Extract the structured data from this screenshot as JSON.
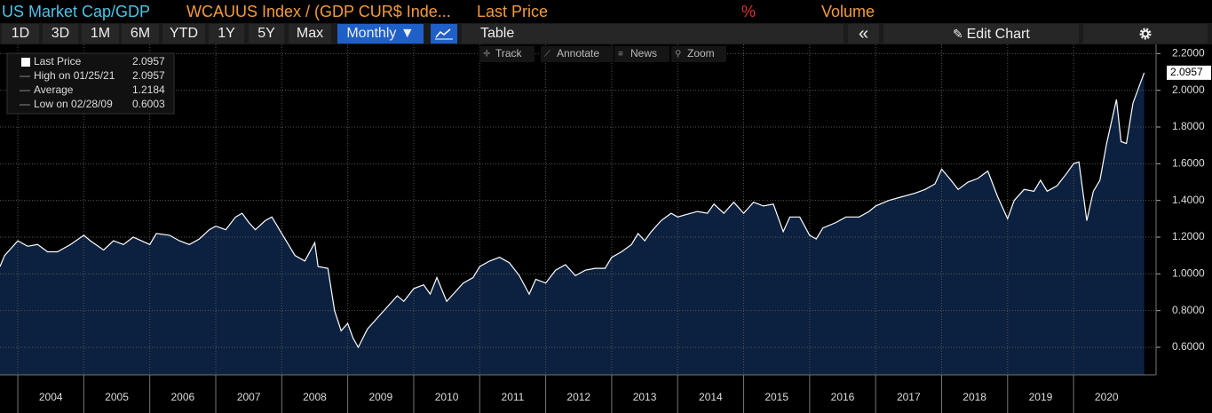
{
  "header": {
    "items": [
      {
        "text": "US Market Cap/GDP",
        "color": "#4fc3e8"
      },
      {
        "text": "WCAUUS Index / (GDP CUR$ Inde...",
        "color": "#f39c3c"
      },
      {
        "text": "Last Price",
        "color": "#f39c3c"
      },
      {
        "text": "%",
        "color": "#e0302a"
      },
      {
        "text": "Volume",
        "color": "#f39c3c"
      }
    ]
  },
  "toolbar": {
    "ranges": [
      "1D",
      "3D",
      "1M",
      "6M",
      "YTD",
      "1Y",
      "5Y",
      "Max"
    ],
    "period": "Monthly ▼",
    "table": "Table",
    "collapse": "«",
    "edit": "Edit Chart"
  },
  "chart_tools": [
    "Track",
    "Annotate",
    "News",
    "Zoom"
  ],
  "legend_stats": [
    {
      "label": "Last Price",
      "value": 2.0957
    },
    {
      "label": "High on 01/25/21",
      "value": 2.0957
    },
    {
      "label": "Average",
      "value": 1.2184
    },
    {
      "label": "Low on 02/28/09",
      "value": 0.6003
    }
  ],
  "chart_data": {
    "type": "area",
    "color": "#ffffff",
    "fill": "#0c2140",
    "grid": true,
    "x": [
      2003.73,
      2003.8,
      2004.0,
      2004.15,
      2004.3,
      2004.45,
      2004.6,
      2004.8,
      2005.0,
      2005.1,
      2005.3,
      2005.45,
      2005.6,
      2005.75,
      2006.0,
      2006.1,
      2006.3,
      2006.45,
      2006.6,
      2006.75,
      2006.9,
      2007.0,
      2007.15,
      2007.3,
      2007.4,
      2007.5,
      2007.6,
      2007.75,
      2007.85,
      2008.0,
      2008.1,
      2008.2,
      2008.35,
      2008.5,
      2008.55,
      2008.7,
      2008.8,
      2008.9,
      2009.0,
      2009.08,
      2009.16,
      2009.3,
      2009.45,
      2009.6,
      2009.75,
      2009.85,
      2010.0,
      2010.15,
      2010.25,
      2010.35,
      2010.5,
      2010.6,
      2010.75,
      2010.9,
      2011.0,
      2011.15,
      2011.3,
      2011.45,
      2011.6,
      2011.75,
      2011.85,
      2012.0,
      2012.15,
      2012.3,
      2012.45,
      2012.6,
      2012.75,
      2012.9,
      2013.0,
      2013.15,
      2013.3,
      2013.4,
      2013.5,
      2013.6,
      2013.75,
      2013.9,
      2014.0,
      2014.1,
      2014.3,
      2014.45,
      2014.55,
      2014.7,
      2014.85,
      2015.0,
      2015.15,
      2015.3,
      2015.45,
      2015.6,
      2015.7,
      2015.85,
      2016.0,
      2016.1,
      2016.2,
      2016.4,
      2016.55,
      2016.75,
      2016.9,
      2017.0,
      2017.2,
      2017.4,
      2017.6,
      2017.75,
      2017.9,
      2018.0,
      2018.12,
      2018.25,
      2018.4,
      2018.55,
      2018.7,
      2018.85,
      2019.0,
      2019.1,
      2019.25,
      2019.4,
      2019.5,
      2019.6,
      2019.75,
      2019.9,
      2020.0,
      2020.08,
      2020.2,
      2020.3,
      2020.4,
      2020.5,
      2020.65,
      2020.72,
      2020.8,
      2020.9,
      2021.07
    ],
    "values": [
      1.04,
      1.1,
      1.18,
      1.15,
      1.16,
      1.12,
      1.12,
      1.16,
      1.21,
      1.18,
      1.13,
      1.18,
      1.16,
      1.2,
      1.16,
      1.22,
      1.21,
      1.18,
      1.16,
      1.19,
      1.24,
      1.26,
      1.24,
      1.31,
      1.33,
      1.28,
      1.24,
      1.29,
      1.31,
      1.22,
      1.16,
      1.1,
      1.07,
      1.17,
      1.04,
      1.03,
      0.8,
      0.69,
      0.73,
      0.65,
      0.6,
      0.7,
      0.76,
      0.82,
      0.88,
      0.85,
      0.92,
      0.94,
      0.89,
      0.98,
      0.85,
      0.89,
      0.95,
      0.98,
      1.04,
      1.07,
      1.09,
      1.06,
      0.99,
      0.89,
      0.97,
      0.95,
      1.02,
      1.05,
      0.99,
      1.02,
      1.03,
      1.03,
      1.09,
      1.12,
      1.16,
      1.22,
      1.18,
      1.23,
      1.29,
      1.33,
      1.31,
      1.32,
      1.34,
      1.33,
      1.38,
      1.33,
      1.39,
      1.33,
      1.39,
      1.37,
      1.38,
      1.23,
      1.31,
      1.31,
      1.21,
      1.19,
      1.25,
      1.28,
      1.31,
      1.31,
      1.34,
      1.37,
      1.4,
      1.42,
      1.44,
      1.46,
      1.49,
      1.57,
      1.52,
      1.46,
      1.5,
      1.52,
      1.56,
      1.42,
      1.3,
      1.4,
      1.46,
      1.45,
      1.51,
      1.45,
      1.48,
      1.55,
      1.6,
      1.61,
      1.29,
      1.45,
      1.51,
      1.71,
      1.95,
      1.72,
      1.71,
      1.93,
      2.0957
    ],
    "xlim": [
      2003.73,
      2021.25
    ],
    "xticks": [
      2004,
      2005,
      2006,
      2007,
      2008,
      2009,
      2010,
      2011,
      2012,
      2013,
      2014,
      2015,
      2016,
      2017,
      2018,
      2019,
      2020
    ],
    "ylim": [
      0.45,
      2.25
    ],
    "yticks": [
      {
        "value": 0.6,
        "label": "0.6000"
      },
      {
        "value": 0.8,
        "label": "0.8000"
      },
      {
        "value": 1.0,
        "label": "1.0000"
      },
      {
        "value": 1.2,
        "label": "1.2000"
      },
      {
        "value": 1.4,
        "label": "1.4000"
      },
      {
        "value": 1.6,
        "label": "1.6000"
      },
      {
        "value": 1.8,
        "label": "1.8000"
      },
      {
        "value": 2.0,
        "label": "2.0000"
      },
      {
        "value": 2.2,
        "label": "2.2000"
      }
    ]
  }
}
